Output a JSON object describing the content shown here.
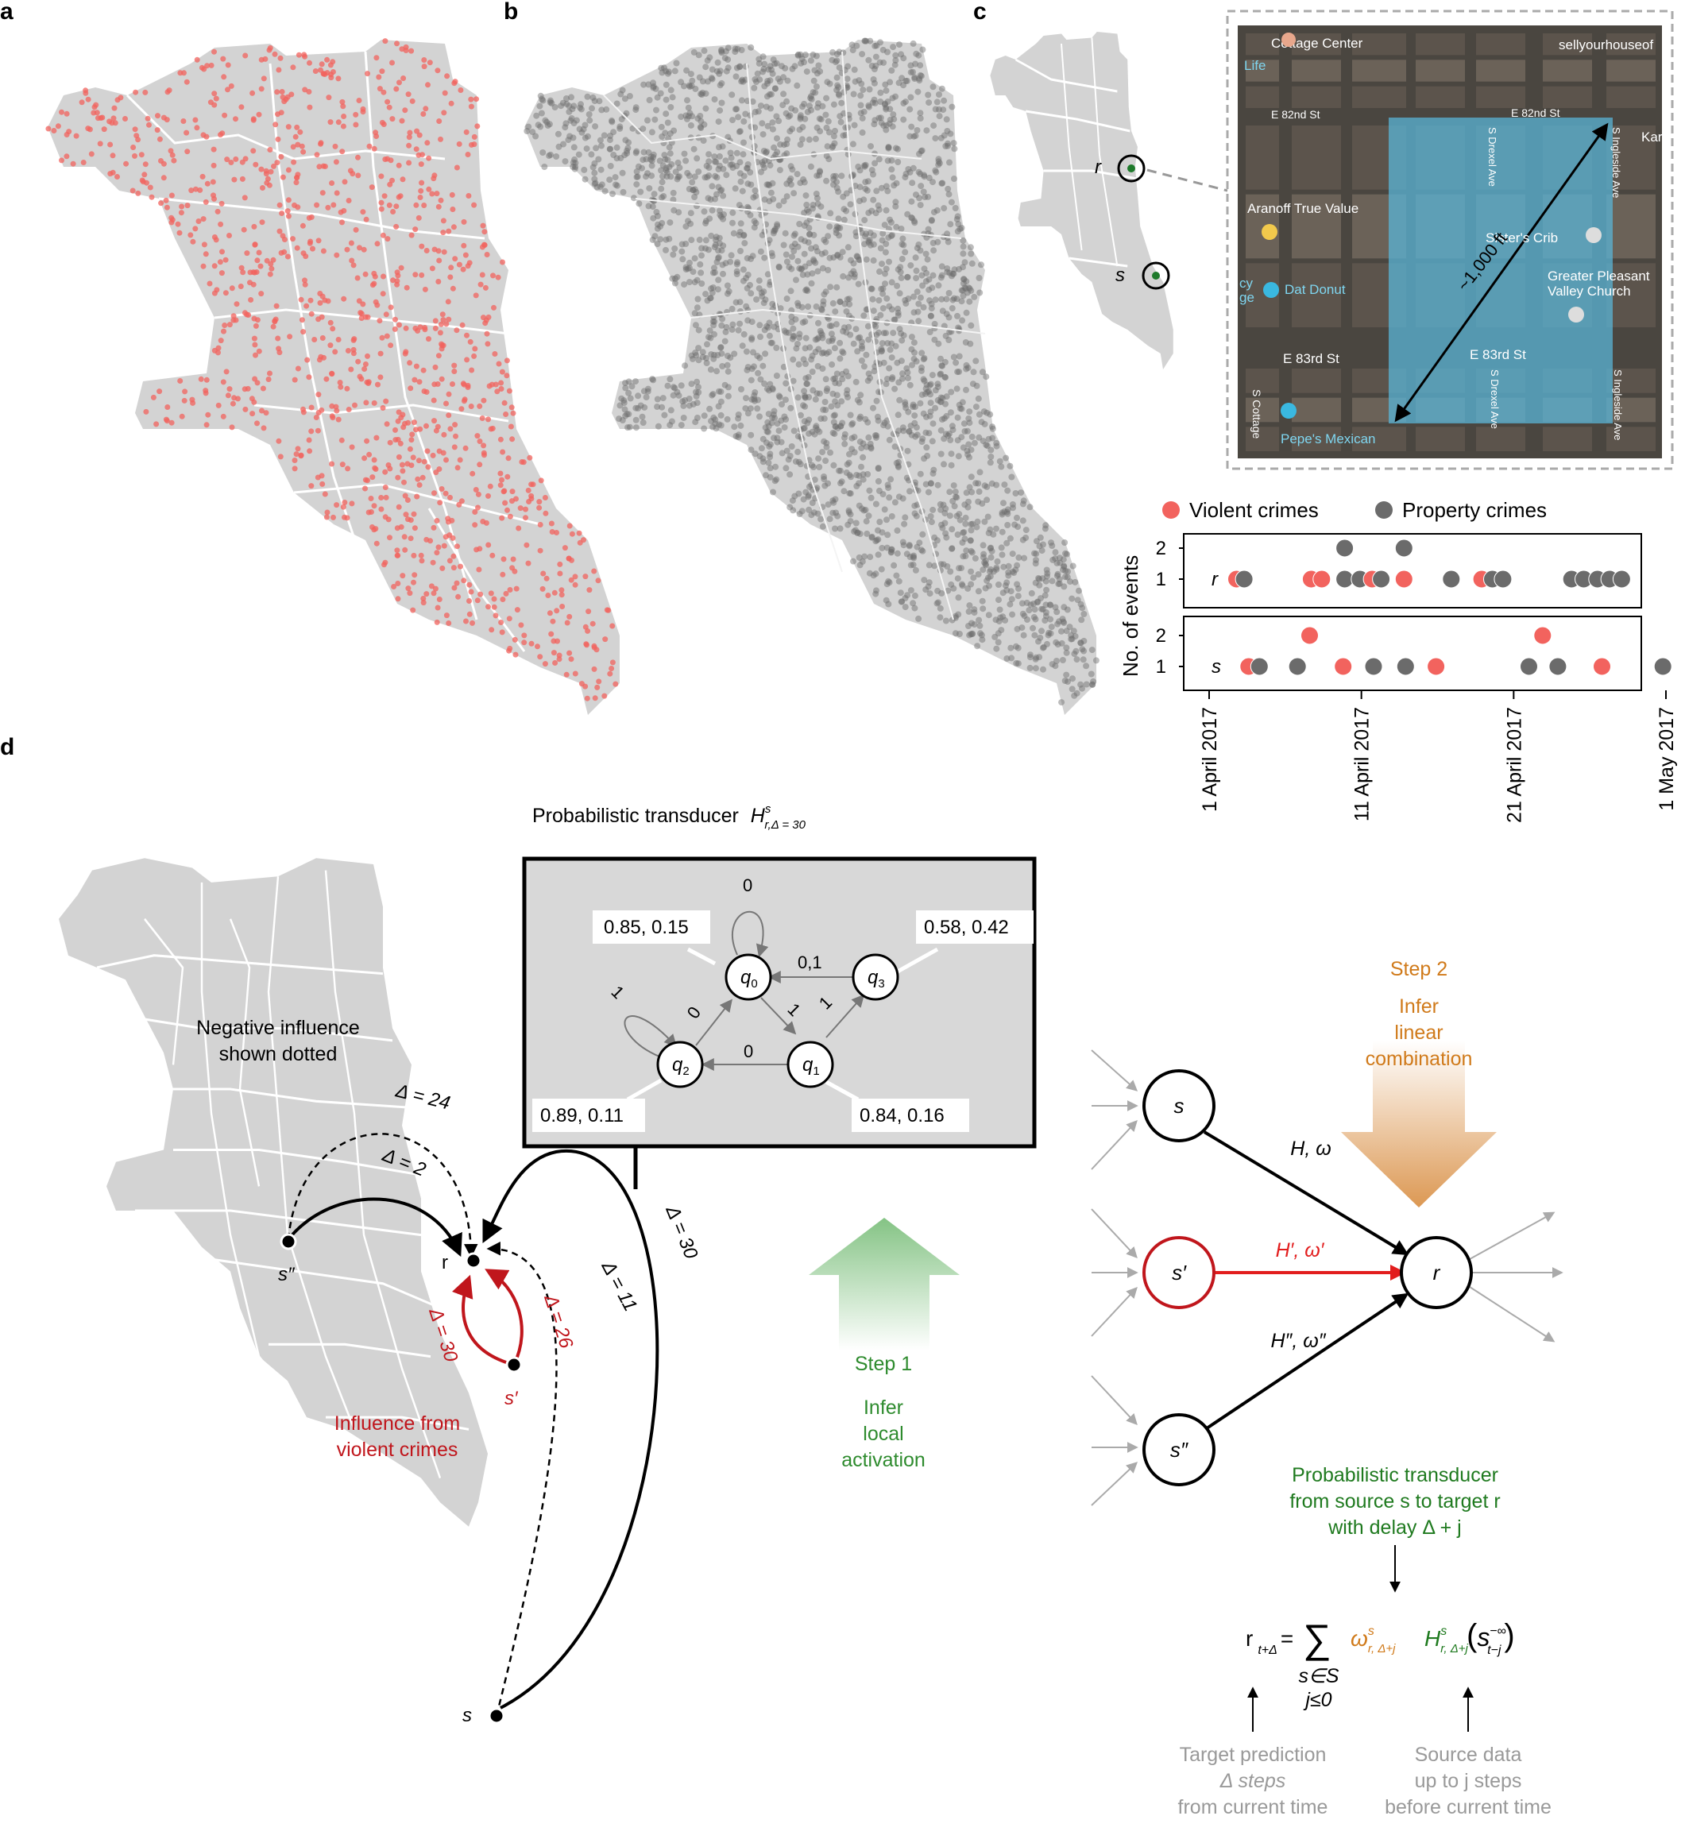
{
  "panels": {
    "a": "a",
    "b": "b",
    "c": "c",
    "d": "d"
  },
  "colors": {
    "violent": "#f2635e",
    "property": "#6b6b6b",
    "map_land": "#d3d3d3",
    "step1": "#2e8b2e",
    "step2": "#d07a1a",
    "influence_red": "#c0161c",
    "sat_highlight": "#5ab4d6"
  },
  "map_c": {
    "labels": [
      "Cottage Center",
      "sellyourhouseof",
      "Life",
      "E 82nd St",
      "E 82nd St",
      "Kari",
      "S Drexel Ave",
      "S Ingleside Ave",
      "Aranoff True Value",
      "Sister's Crib",
      "Greater Pleasant",
      "Valley Church",
      "Dat Donut",
      "cy",
      "ge",
      "~1,000 ft",
      "E 83rd St",
      "E 83rd St",
      "S Cottage",
      "Pepe's Mexican",
      "S Drexel Ave",
      "S Ingleside Ave"
    ],
    "r_label": "r",
    "s_label": "s"
  },
  "legend": {
    "violent": "Violent crimes",
    "property": "Property crimes"
  },
  "chart_data": {
    "type": "scatter",
    "ylabel": "No. of events",
    "yticks": [
      "1",
      "2"
    ],
    "xtick_labels": [
      "1 April 2017",
      "11 April 2017",
      "21 April 2017",
      "1 May 2017"
    ],
    "xtick_days": [
      0,
      10,
      20,
      30
    ],
    "series": [
      {
        "name": "r",
        "events": [
          {
            "day": 1.8,
            "count": 1,
            "type": "violent"
          },
          {
            "day": 2.3,
            "count": 1,
            "type": "property"
          },
          {
            "day": 6.7,
            "count": 1,
            "type": "violent"
          },
          {
            "day": 7.4,
            "count": 1,
            "type": "violent"
          },
          {
            "day": 8.9,
            "count": 1,
            "type": "property"
          },
          {
            "day": 8.9,
            "count": 2,
            "type": "property"
          },
          {
            "day": 9.9,
            "count": 1,
            "type": "property"
          },
          {
            "day": 10.7,
            "count": 1,
            "type": "violent"
          },
          {
            "day": 11.3,
            "count": 1,
            "type": "property"
          },
          {
            "day": 12.8,
            "count": 1,
            "type": "violent"
          },
          {
            "day": 12.8,
            "count": 2,
            "type": "property"
          },
          {
            "day": 15.9,
            "count": 1,
            "type": "property"
          },
          {
            "day": 17.9,
            "count": 1,
            "type": "violent"
          },
          {
            "day": 18.6,
            "count": 1,
            "type": "property"
          },
          {
            "day": 19.3,
            "count": 1,
            "type": "property"
          },
          {
            "day": 23.8,
            "count": 1,
            "type": "property"
          },
          {
            "day": 24.6,
            "count": 1,
            "type": "property"
          },
          {
            "day": 25.5,
            "count": 1,
            "type": "property"
          },
          {
            "day": 26.3,
            "count": 1,
            "type": "property"
          },
          {
            "day": 27.1,
            "count": 1,
            "type": "property"
          }
        ]
      },
      {
        "name": "s",
        "events": [
          {
            "day": 2.6,
            "count": 1,
            "type": "violent"
          },
          {
            "day": 3.3,
            "count": 1,
            "type": "property"
          },
          {
            "day": 5.8,
            "count": 1,
            "type": "property"
          },
          {
            "day": 6.6,
            "count": 2,
            "type": "violent"
          },
          {
            "day": 8.8,
            "count": 1,
            "type": "violent"
          },
          {
            "day": 10.8,
            "count": 1,
            "type": "property"
          },
          {
            "day": 12.9,
            "count": 1,
            "type": "property"
          },
          {
            "day": 14.9,
            "count": 1,
            "type": "violent"
          },
          {
            "day": 21.0,
            "count": 1,
            "type": "property"
          },
          {
            "day": 21.9,
            "count": 2,
            "type": "violent"
          },
          {
            "day": 22.9,
            "count": 1,
            "type": "property"
          },
          {
            "day": 25.8,
            "count": 1,
            "type": "violent"
          },
          {
            "day": 29.8,
            "count": 1,
            "type": "property"
          }
        ]
      }
    ]
  },
  "transducer": {
    "title": "Probabilistic transducer",
    "symbol": "H",
    "sup": "s",
    "sub": "r,Δ = 30",
    "states": [
      {
        "label": "q",
        "idx": "0",
        "emit": "0.85, 0.15"
      },
      {
        "label": "q",
        "idx": "3",
        "emit": "0.58, 0.42"
      },
      {
        "label": "q",
        "idx": "2",
        "emit": "0.89, 0.11"
      },
      {
        "label": "q",
        "idx": "1",
        "emit": "0.84, 0.16"
      }
    ],
    "edges": [
      "0",
      "0,1",
      "1",
      "0",
      "1",
      "1",
      "0"
    ]
  },
  "map_d": {
    "note": "Negative influence\nshown dotted",
    "note_lines": [
      "Negative influence",
      "shown dotted"
    ],
    "violent_lines": [
      "Influence from",
      "violent crimes"
    ],
    "nodes": [
      "r",
      "s″",
      "s′",
      "s"
    ],
    "deltas": [
      "Δ = 24",
      "Δ = 2",
      "Δ = 30",
      "Δ = 26",
      "Δ = 11",
      "Δ = 30"
    ]
  },
  "steps": {
    "step1_title": "Step 1",
    "step1_lines": [
      "Infer",
      "local",
      "activation"
    ],
    "step2_title": "Step 2",
    "step2_lines": [
      "Infer",
      "linear",
      "combination"
    ]
  },
  "network": {
    "nodes": [
      "s",
      "s′",
      "s″",
      "r"
    ],
    "edge_labels": [
      "H, ω",
      "H′, ω′",
      "H″, ω″"
    ],
    "transducer_desc": [
      "Probabilistic transducer",
      "from source s to target r",
      "with delay Δ + j"
    ],
    "formula": {
      "lhs": "r",
      "lhs_sub": "t+Δ",
      "sum": "∑",
      "under1": "s∈S",
      "under2": "j≤0",
      "omega": "ω",
      "omega_sup": "s",
      "omega_sub": "r, Δ+j",
      "H": "H",
      "H_sup": "s",
      "H_sub": "r, Δ+j",
      "arg": "s",
      "arg_sup": "−∞",
      "arg_sub": "t−j"
    },
    "target_caption": [
      "Target prediction",
      "Δ steps",
      "from current time"
    ],
    "source_caption": [
      "Source data",
      "up to j steps",
      "before current time"
    ]
  }
}
